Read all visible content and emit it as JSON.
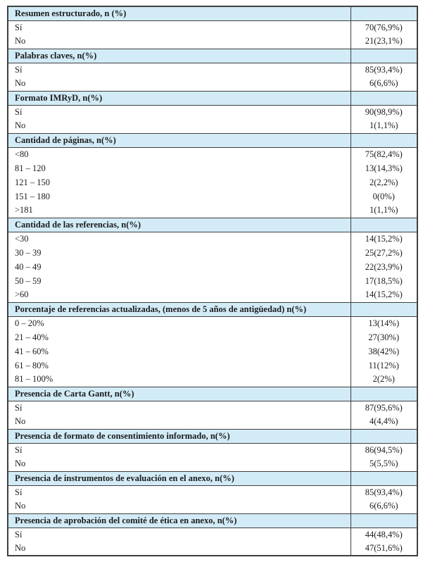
{
  "colors": {
    "header_bg": "#d2ebf7",
    "border": "#3f3f3f",
    "text": "#1c1c1c",
    "page_bg": "#ffffff"
  },
  "table": {
    "sections": [
      {
        "header": "Resumen estructurado, n (%)",
        "rows": [
          {
            "label": "Sí",
            "value": "70(76,9%)"
          },
          {
            "label": "No",
            "value": "21(23,1%)"
          }
        ]
      },
      {
        "header": "Palabras claves, n(%)",
        "rows": [
          {
            "label": "Sí",
            "value": "85(93,4%)"
          },
          {
            "label": "No",
            "value": "6(6,6%)"
          }
        ]
      },
      {
        "header": "Formato IMRyD, n(%)",
        "rows": [
          {
            "label": "Sí",
            "value": "90(98,9%)"
          },
          {
            "label": "No",
            "value": "1(1,1%)"
          }
        ]
      },
      {
        "header": "Cantidad de páginas, n(%)",
        "rows": [
          {
            "label": "<80",
            "value": "75(82,4%)"
          },
          {
            "label": "81 – 120",
            "value": "13(14,3%)"
          },
          {
            "label": "121 – 150",
            "value": "2(2,2%)"
          },
          {
            "label": "151 – 180",
            "value": "0(0%)"
          },
          {
            "label": ">181",
            "value": "1(1,1%)"
          }
        ]
      },
      {
        "header": "Cantidad de las referencias, n(%)",
        "rows": [
          {
            "label": "<30",
            "value": "14(15,2%)"
          },
          {
            "label": "30 – 39",
            "value": "25(27,2%)"
          },
          {
            "label": "40 – 49",
            "value": "22(23,9%)"
          },
          {
            "label": "50 – 59",
            "value": "17(18,5%)"
          },
          {
            "label": ">60",
            "value": "14(15,2%)"
          }
        ]
      },
      {
        "header": "Porcentaje de referencias actualizadas, (menos de 5 años de antigüedad) n(%)",
        "rows": [
          {
            "label": "0 – 20%",
            "value": "13(14%)"
          },
          {
            "label": "21 – 40%",
            "value": "27(30%)"
          },
          {
            "label": "41 – 60%",
            "value": "38(42%)"
          },
          {
            "label": "61 – 80%",
            "value": "11(12%)"
          },
          {
            "label": "81 – 100%",
            "value": "2(2%)"
          }
        ]
      },
      {
        "header": "Presencia de Carta Gantt, n(%)",
        "rows": [
          {
            "label": "Sí",
            "value": "87(95,6%)"
          },
          {
            "label": "No",
            "value": "4(4,4%)"
          }
        ]
      },
      {
        "header": "Presencia de formato de consentimiento informado, n(%)",
        "rows": [
          {
            "label": "Sí",
            "value": "86(94,5%)"
          },
          {
            "label": "No",
            "value": "5(5,5%)"
          }
        ]
      },
      {
        "header": "Presencia de instrumentos de evaluación en el anexo, n(%)",
        "rows": [
          {
            "label": "Sí",
            "value": "85(93,4%)"
          },
          {
            "label": "No",
            "value": "6(6,6%)"
          }
        ]
      },
      {
        "header": "Presencia de aprobación del comité de ética en anexo, n(%)",
        "rows": [
          {
            "label": "Sí",
            "value": "44(48,4%)"
          },
          {
            "label": "No",
            "value": "47(51,6%)"
          }
        ]
      }
    ]
  }
}
